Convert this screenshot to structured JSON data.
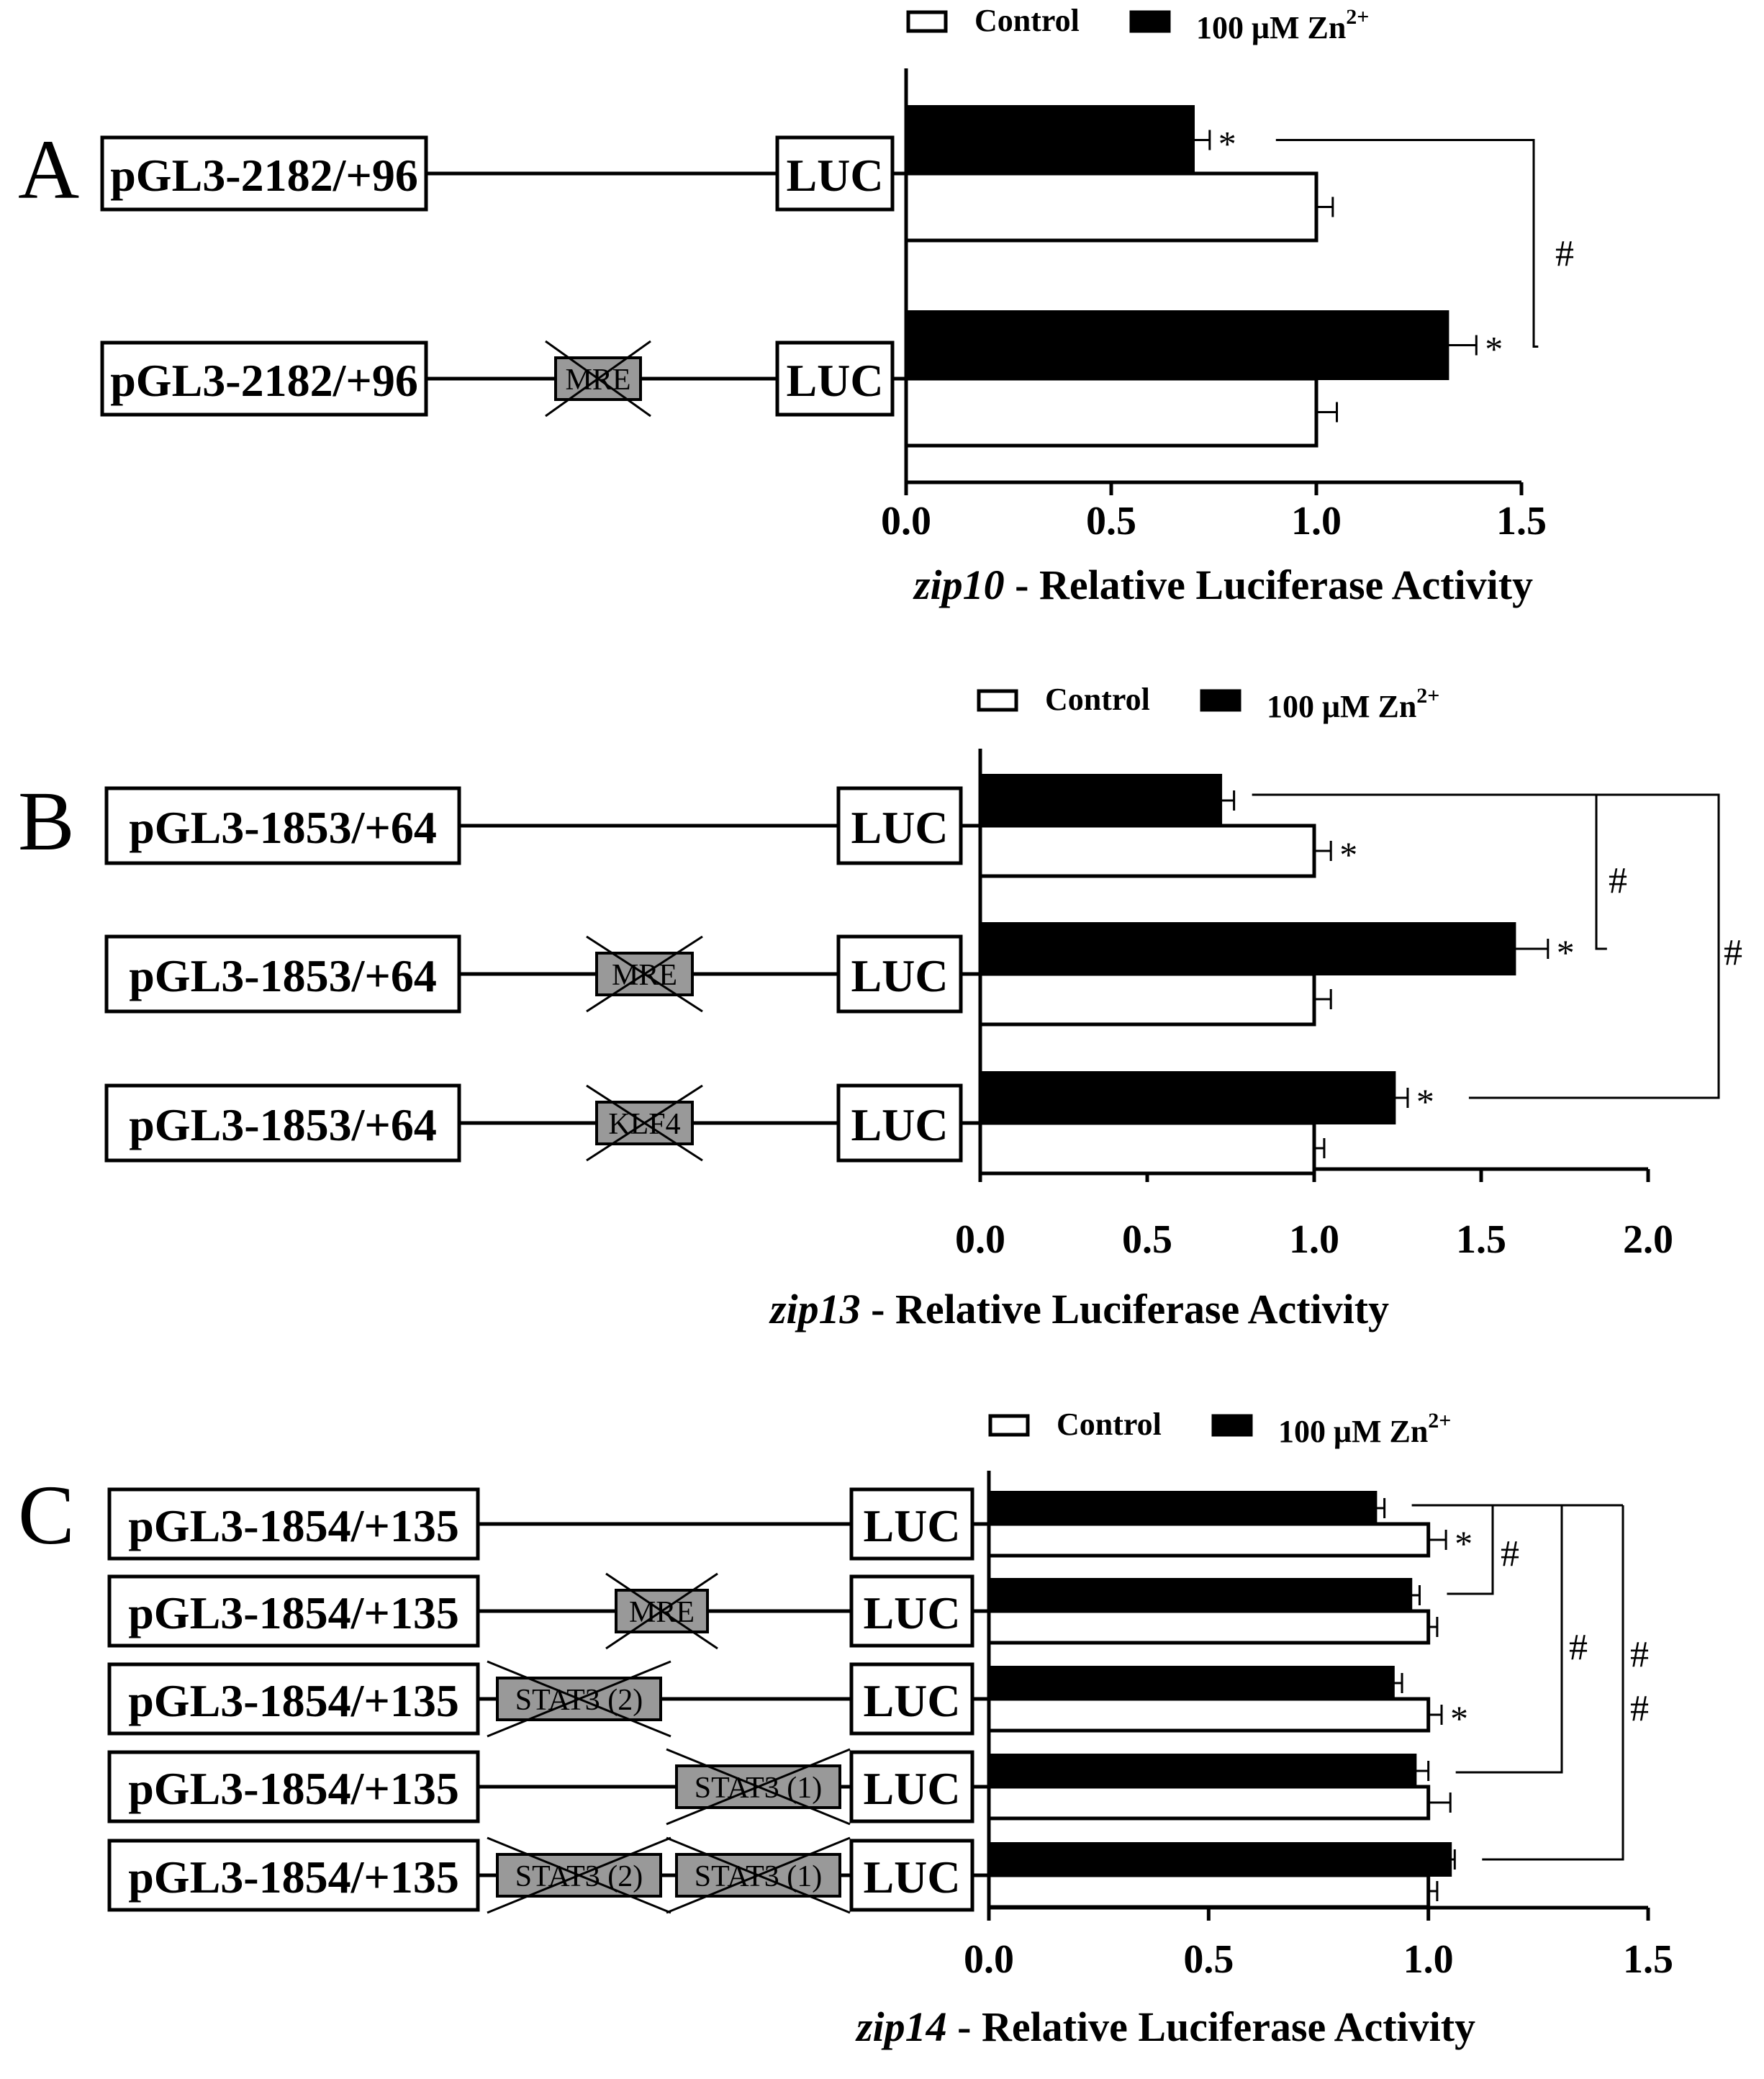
{
  "panels": [
    {
      "letter": "A",
      "constructs": [
        {
          "label": "pGL3-2182/+96",
          "sites": []
        },
        {
          "label": "pGL3-2182/+96",
          "sites": [
            "MRE"
          ]
        }
      ],
      "luc_label": "LUC",
      "legend": {
        "control": "Control",
        "zn_prefix": "100 μM Zn",
        "zn_sup": "2+"
      },
      "xlabel": {
        "gene": "zip10",
        "rest": " - Relative Luciferase Activity"
      },
      "sig": [
        {
          "row": 0,
          "bar": "zn",
          "star": "*"
        },
        {
          "row": 1,
          "bar": "zn",
          "star": "*"
        }
      ],
      "hash": [
        {
          "text": "#"
        }
      ]
    },
    {
      "letter": "B",
      "constructs": [
        {
          "label": "pGL3-1853/+64",
          "sites": []
        },
        {
          "label": "pGL3-1853/+64",
          "sites": [
            "MRE"
          ]
        },
        {
          "label": "pGL3-1853/+64",
          "sites": [
            "KLF4"
          ]
        }
      ],
      "luc_label": "LUC",
      "legend": {
        "control": "Control",
        "zn_prefix": "100 μM Zn",
        "zn_sup": "2+"
      },
      "xlabel": {
        "gene": "zip13",
        "rest": " - Relative Luciferase Activity"
      },
      "sig": [
        {
          "row": 0,
          "bar": "control",
          "star": "*"
        },
        {
          "row": 1,
          "bar": "zn",
          "star": "*"
        },
        {
          "row": 2,
          "bar": "zn",
          "star": "*"
        }
      ],
      "hash": [
        {
          "text": "#"
        },
        {
          "text": "#"
        }
      ]
    },
    {
      "letter": "C",
      "constructs": [
        {
          "label": "pGL3-1854/+135",
          "sites": []
        },
        {
          "label": "pGL3-1854/+135",
          "sites": [
            "MRE"
          ]
        },
        {
          "label": "pGL3-1854/+135",
          "sites": [
            "STAT3 (2)"
          ]
        },
        {
          "label": "pGL3-1854/+135",
          "sites": [
            "STAT3 (1)"
          ]
        },
        {
          "label": "pGL3-1854/+135",
          "sites": [
            "STAT3 (2)",
            "STAT3 (1)"
          ]
        }
      ],
      "luc_label": "LUC",
      "legend": {
        "control": "Control",
        "zn_prefix": "100 μM Zn",
        "zn_sup": "2+"
      },
      "xlabel": {
        "gene": "zip14",
        "rest": " - Relative Luciferase Activity"
      },
      "sig": [
        {
          "row": 0,
          "bar": "control",
          "star": "*"
        },
        {
          "row": 2,
          "bar": "control",
          "star": "*"
        }
      ],
      "hash": [
        {
          "text": "#"
        },
        {
          "text": "#"
        },
        {
          "text": "#"
        },
        {
          "text": "#"
        }
      ]
    }
  ],
  "chart_data": [
    {
      "type": "bar",
      "orientation": "horizontal",
      "categories": [
        "pGL3-2182/+96",
        "pGL3-2182/+96 MRE mutated"
      ],
      "series": [
        {
          "name": "Control",
          "values": [
            1.0,
            1.0
          ],
          "errors": [
            0.04,
            0.05
          ]
        },
        {
          "name": "100 μM Zn2+",
          "values": [
            0.7,
            1.32
          ],
          "errors": [
            0.04,
            0.07
          ]
        }
      ],
      "xlabel": "zip10 - Relative Luciferase Activity",
      "xlim": [
        0,
        1.5
      ],
      "xticks": [
        "0.0",
        "0.5",
        "1.0",
        "1.5"
      ],
      "legend": "top",
      "grid": false
    },
    {
      "type": "bar",
      "orientation": "horizontal",
      "categories": [
        "pGL3-1853/+64",
        "pGL3-1853/+64 MRE mutated",
        "pGL3-1853/+64 KLF4 mutated"
      ],
      "series": [
        {
          "name": "Control",
          "values": [
            1.0,
            1.0,
            1.0
          ],
          "errors": [
            0.05,
            0.05,
            0.03
          ]
        },
        {
          "name": "100 μM Zn2+",
          "values": [
            0.72,
            1.6,
            1.24
          ],
          "errors": [
            0.04,
            0.1,
            0.04
          ]
        }
      ],
      "xlabel": "zip13 - Relative Luciferase Activity",
      "xlim": [
        0,
        2.0
      ],
      "xticks": [
        "0.0",
        "0.5",
        "1.0",
        "1.5",
        "2.0"
      ],
      "legend": "top",
      "grid": false
    },
    {
      "type": "bar",
      "orientation": "horizontal",
      "categories": [
        "pGL3-1854/+135",
        "pGL3-1854/+135 MRE mutated",
        "pGL3-1854/+135 STAT3 (2) mutated",
        "pGL3-1854/+135 STAT3 (1) mutated",
        "pGL3-1854/+135 STAT3 (2)+(1) mutated"
      ],
      "series": [
        {
          "name": "Control",
          "values": [
            1.0,
            1.0,
            1.0,
            1.0,
            1.0
          ],
          "errors": [
            0.04,
            0.02,
            0.03,
            0.05,
            0.02
          ]
        },
        {
          "name": "100 μM Zn2+",
          "values": [
            0.88,
            0.96,
            0.92,
            0.97,
            1.05
          ],
          "errors": [
            0.02,
            0.02,
            0.02,
            0.03,
            0.01
          ]
        }
      ],
      "xlabel": "zip14 - Relative Luciferase Activity",
      "xlim": [
        0,
        1.5
      ],
      "xticks": [
        "0.0",
        "0.5",
        "1.0",
        "1.5"
      ],
      "legend": "top",
      "grid": false
    }
  ]
}
